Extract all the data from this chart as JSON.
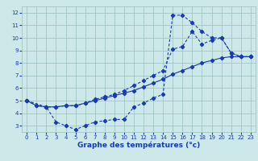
{
  "xlabel": "Graphe des températures (°c)",
  "xlim": [
    -0.5,
    23.5
  ],
  "ylim": [
    2.5,
    12.5
  ],
  "xticks": [
    0,
    1,
    2,
    3,
    4,
    5,
    6,
    7,
    8,
    9,
    10,
    11,
    12,
    13,
    14,
    15,
    16,
    17,
    18,
    19,
    20,
    21,
    22,
    23
  ],
  "yticks": [
    3,
    4,
    5,
    6,
    7,
    8,
    9,
    10,
    11,
    12
  ],
  "bg_color": "#cce8e8",
  "line_color": "#1a3ab0",
  "grid_color": "#9bbfbf",
  "line1_x": [
    0,
    1,
    2,
    3,
    4,
    5,
    6,
    7,
    8,
    9,
    10,
    11,
    12,
    13,
    14,
    15,
    16,
    17,
    18,
    19,
    20,
    21,
    22,
    23
  ],
  "line1_y": [
    5.0,
    4.6,
    4.5,
    4.5,
    4.6,
    4.6,
    4.8,
    5.0,
    5.2,
    5.4,
    5.6,
    5.8,
    6.1,
    6.4,
    6.7,
    7.1,
    7.4,
    7.7,
    8.0,
    8.2,
    8.4,
    8.5,
    8.5,
    8.5
  ],
  "line2_x": [
    0,
    1,
    2,
    3,
    4,
    5,
    6,
    7,
    8,
    9,
    10,
    11,
    12,
    13,
    14,
    15,
    16,
    17,
    18,
    19,
    20,
    21,
    22,
    23
  ],
  "line2_y": [
    5.0,
    4.6,
    4.5,
    3.3,
    3.0,
    2.7,
    3.0,
    3.3,
    3.4,
    3.5,
    3.5,
    4.5,
    4.8,
    5.2,
    5.5,
    11.8,
    11.8,
    11.2,
    10.5,
    10.0,
    10.0,
    8.8,
    8.5,
    8.5
  ],
  "line3_x": [
    0,
    2,
    3,
    4,
    5,
    6,
    7,
    8,
    9,
    10,
    11,
    12,
    13,
    14,
    15,
    16,
    17,
    18,
    19,
    20,
    21,
    22,
    23
  ],
  "line3_y": [
    5.0,
    4.5,
    4.5,
    4.6,
    4.6,
    4.8,
    5.1,
    5.3,
    5.5,
    5.8,
    6.2,
    6.6,
    7.0,
    7.4,
    9.1,
    9.3,
    10.5,
    9.5,
    9.8,
    10.0,
    8.8,
    8.5,
    8.5
  ]
}
